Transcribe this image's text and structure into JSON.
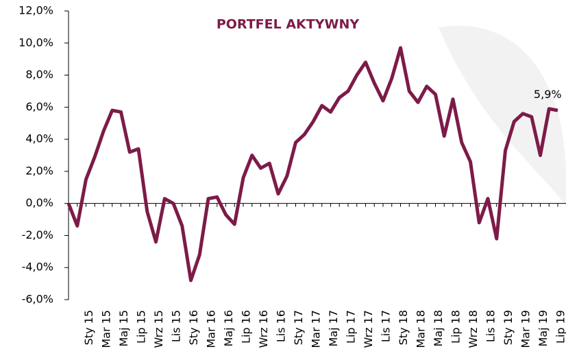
{
  "chart_data": {
    "type": "line",
    "title": "PORTFEL AKTYWNY",
    "categories": [
      null,
      null,
      "Sty 15",
      null,
      "Mar 15",
      null,
      "Maj 15",
      null,
      "Lip 15",
      null,
      "Wrz 15",
      null,
      "Lis 15",
      null,
      "Sty 16",
      null,
      "Mar 16",
      null,
      "Maj 16",
      null,
      "Lip 16",
      null,
      "Wrz 16",
      null,
      "Lis 16",
      null,
      "Sty 17",
      null,
      "Mar 17",
      null,
      "Maj 17",
      null,
      "Lip 17",
      null,
      "Wrz 17",
      null,
      "Lis 17",
      null,
      "Sty 18",
      null,
      "Mar 18",
      null,
      "Maj 18",
      null,
      "Lip 18",
      null,
      "Wrz 18",
      null,
      "Lis 18",
      null,
      "Sty 19",
      null,
      "Mar 19",
      null,
      "Maj 19",
      null,
      "Lip 19"
    ],
    "series": [
      {
        "color": "#7d1b48",
        "values": [
          0,
          -1.4,
          1.5,
          2.9,
          4.5,
          5.8,
          5.7,
          3.2,
          3.4,
          -0.5,
          -2.4,
          0.3,
          0.0,
          -1.4,
          -4.8,
          -3.2,
          0.3,
          0.4,
          -0.7,
          -1.3,
          1.6,
          3.0,
          2.2,
          2.5,
          0.6,
          1.7,
          3.8,
          4.3,
          5.1,
          6.1,
          5.7,
          6.6,
          7.0,
          8.0,
          8.8,
          7.5,
          6.4,
          7.8,
          9.7,
          7.0,
          6.3,
          7.3,
          6.8,
          4.2,
          6.5,
          3.8,
          2.6,
          -1.2,
          0.3,
          -2.2,
          3.3,
          5.1,
          5.6,
          5.4,
          3.0,
          5.9,
          5.8
        ],
        "value_labels": [
          null,
          null,
          null,
          null,
          null,
          null,
          null,
          null,
          null,
          null,
          null,
          null,
          null,
          null,
          null,
          null,
          null,
          null,
          null,
          null,
          null,
          null,
          null,
          null,
          null,
          null,
          null,
          null,
          null,
          null,
          null,
          null,
          null,
          null,
          null,
          null,
          null,
          null,
          null,
          null,
          null,
          null,
          null,
          null,
          null,
          null,
          null,
          null,
          null,
          null,
          null,
          null,
          null,
          null,
          null,
          "5,9%",
          null
        ]
      }
    ],
    "ylim": [
      -6,
      12
    ],
    "yticks": [
      {
        "value": -6,
        "label": "-6,0%"
      },
      {
        "value": -4,
        "label": "-4,0%"
      },
      {
        "value": -2,
        "label": "-2,0%"
      },
      {
        "value": 0,
        "label": "0,0%"
      },
      {
        "value": 2,
        "label": "2,0%"
      },
      {
        "value": 4,
        "label": "4,0%"
      },
      {
        "value": 6,
        "label": "6,0%"
      },
      {
        "value": 8,
        "label": "8,0%"
      },
      {
        "value": 10,
        "label": "10,0%"
      },
      {
        "value": 12,
        "label": "12,0%"
      }
    ]
  }
}
